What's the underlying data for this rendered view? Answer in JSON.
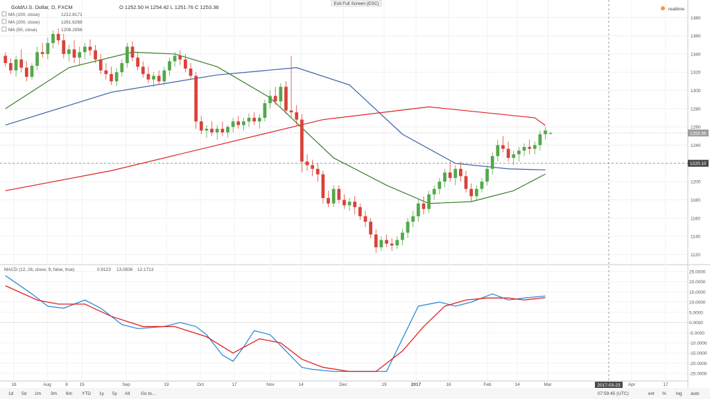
{
  "header": {
    "symbol": "Gold/U.S. Dollar, D, FXCM",
    "ohlc": "O 1252.50 H 1254.42 L 1251.76 C 1253.36",
    "exit_fullscreen": "Exit Full Screen (ESC)",
    "realtime": "realtime"
  },
  "legend": [
    {
      "label": "MA (100, close)",
      "value": "1212.8171",
      "color": "#3b5fa8"
    },
    {
      "label": "MA (200, close)",
      "value": "1261.6268",
      "color": "#e02020"
    },
    {
      "label": "MA (50, close)",
      "value": "1208.2956",
      "color": "#3a7d2a"
    }
  ],
  "price_tags": {
    "last": "1253.36",
    "crosshair": "1220.10"
  },
  "macd": {
    "label": "MACD (12, 26, close, 9, false, true)",
    "v1": "0.9123",
    "v2": "13.0836",
    "v3": "12.1713",
    "c1": "#e02020",
    "c2": "#2a8bd8",
    "c3": "#e02020"
  },
  "toolbar": {
    "periods": [
      "1d",
      "5d",
      "1m",
      "3m",
      "6m",
      "YTD",
      "1y",
      "5y",
      "All",
      "Go to..."
    ],
    "time": "07:59:45 (UTC)",
    "ext": "ext",
    "pct": "%",
    "log": "log",
    "auto": "auto"
  },
  "date_tag": "2017-03-23",
  "colors": {
    "up": "#53a84a",
    "down": "#d9423a",
    "ma100": "#3b5fa8",
    "ma200": "#e02020",
    "ma50": "#3a7d2a",
    "macd": "#2a8bd8",
    "signal": "#e02020"
  },
  "chart_data": {
    "type": "line",
    "title": "Gold/U.S. Dollar, D, FXCM",
    "price_axis": {
      "ticks": [
        1120,
        1140,
        1160,
        1180,
        1200,
        1220,
        1240,
        1260,
        1280,
        1300,
        1320,
        1340,
        1360,
        1380
      ],
      "range": [
        1112,
        1384
      ]
    },
    "macd_axis": {
      "ticks": [
        25,
        20,
        15,
        10,
        5,
        0,
        -5,
        -10,
        -15,
        -20,
        -25
      ],
      "tick_labels": [
        "25.0000",
        "20.0000",
        "15.0000",
        "10.0000",
        "5.0000",
        "0.0000",
        "-5.0000",
        "-10.0000",
        "-15.0000",
        "-20.0000",
        "-25.0000"
      ],
      "range": [
        -28,
        27
      ]
    },
    "x_ticks": [
      "18",
      "Aug",
      "8",
      "15",
      "Sep",
      "19",
      "Oct",
      "17",
      "Nov",
      "14",
      "Dec",
      "19",
      "2017",
      "16",
      "Feb",
      "14",
      "Mar",
      "Apr",
      "17"
    ],
    "candles_ohlc": [
      [
        1338,
        1342,
        1326,
        1330
      ],
      [
        1330,
        1335,
        1318,
        1322
      ],
      [
        1322,
        1338,
        1315,
        1334
      ],
      [
        1334,
        1345,
        1320,
        1325
      ],
      [
        1325,
        1332,
        1310,
        1315
      ],
      [
        1315,
        1330,
        1312,
        1327
      ],
      [
        1327,
        1348,
        1322,
        1342
      ],
      [
        1342,
        1352,
        1336,
        1340
      ],
      [
        1340,
        1358,
        1334,
        1352
      ],
      [
        1352,
        1366,
        1346,
        1362
      ],
      [
        1362,
        1368,
        1350,
        1355
      ],
      [
        1355,
        1362,
        1335,
        1340
      ],
      [
        1340,
        1350,
        1332,
        1345
      ],
      [
        1345,
        1355,
        1330,
        1336
      ],
      [
        1336,
        1348,
        1328,
        1342
      ],
      [
        1342,
        1352,
        1334,
        1348
      ],
      [
        1348,
        1356,
        1338,
        1344
      ],
      [
        1344,
        1350,
        1330,
        1334
      ],
      [
        1334,
        1340,
        1318,
        1322
      ],
      [
        1322,
        1330,
        1312,
        1318
      ],
      [
        1318,
        1326,
        1306,
        1310
      ],
      [
        1310,
        1325,
        1305,
        1320
      ],
      [
        1320,
        1334,
        1315,
        1330
      ],
      [
        1330,
        1352,
        1325,
        1348
      ],
      [
        1348,
        1354,
        1332,
        1336
      ],
      [
        1336,
        1342,
        1322,
        1326
      ],
      [
        1326,
        1332,
        1314,
        1318
      ],
      [
        1318,
        1326,
        1308,
        1312
      ],
      [
        1312,
        1320,
        1304,
        1316
      ],
      [
        1316,
        1322,
        1306,
        1310
      ],
      [
        1310,
        1326,
        1306,
        1322
      ],
      [
        1322,
        1336,
        1316,
        1332
      ],
      [
        1332,
        1342,
        1326,
        1338
      ],
      [
        1338,
        1344,
        1328,
        1334
      ],
      [
        1334,
        1340,
        1320,
        1324
      ],
      [
        1324,
        1330,
        1312,
        1316
      ],
      [
        1316,
        1320,
        1258,
        1266
      ],
      [
        1266,
        1272,
        1252,
        1256
      ],
      [
        1256,
        1262,
        1248,
        1258
      ],
      [
        1258,
        1266,
        1250,
        1254
      ],
      [
        1254,
        1262,
        1246,
        1258
      ],
      [
        1258,
        1266,
        1250,
        1254
      ],
      [
        1254,
        1262,
        1248,
        1260
      ],
      [
        1260,
        1270,
        1254,
        1266
      ],
      [
        1266,
        1272,
        1258,
        1262
      ],
      [
        1262,
        1270,
        1256,
        1266
      ],
      [
        1266,
        1275,
        1260,
        1270
      ],
      [
        1270,
        1276,
        1262,
        1266
      ],
      [
        1266,
        1274,
        1258,
        1270
      ],
      [
        1270,
        1290,
        1266,
        1286
      ],
      [
        1286,
        1300,
        1280,
        1294
      ],
      [
        1294,
        1304,
        1284,
        1288
      ],
      [
        1288,
        1308,
        1282,
        1304
      ],
      [
        1304,
        1310,
        1274,
        1278
      ],
      [
        1278,
        1338,
        1270,
        1276
      ],
      [
        1276,
        1284,
        1262,
        1268
      ],
      [
        1268,
        1274,
        1210,
        1222
      ],
      [
        1222,
        1230,
        1212,
        1218
      ],
      [
        1218,
        1224,
        1206,
        1214
      ],
      [
        1214,
        1220,
        1200,
        1208
      ],
      [
        1208,
        1212,
        1176,
        1182
      ],
      [
        1182,
        1190,
        1172,
        1176
      ],
      [
        1176,
        1196,
        1172,
        1192
      ],
      [
        1192,
        1196,
        1176,
        1180
      ],
      [
        1180,
        1186,
        1170,
        1174
      ],
      [
        1174,
        1182,
        1168,
        1178
      ],
      [
        1178,
        1184,
        1164,
        1172
      ],
      [
        1172,
        1176,
        1158,
        1162
      ],
      [
        1162,
        1168,
        1150,
        1156
      ],
      [
        1156,
        1160,
        1138,
        1142
      ],
      [
        1142,
        1148,
        1122,
        1128
      ],
      [
        1128,
        1140,
        1124,
        1136
      ],
      [
        1136,
        1142,
        1128,
        1132
      ],
      [
        1132,
        1138,
        1124,
        1130
      ],
      [
        1130,
        1140,
        1126,
        1136
      ],
      [
        1136,
        1148,
        1130,
        1144
      ],
      [
        1144,
        1160,
        1138,
        1156
      ],
      [
        1156,
        1168,
        1150,
        1162
      ],
      [
        1162,
        1180,
        1156,
        1176
      ],
      [
        1176,
        1184,
        1164,
        1170
      ],
      [
        1170,
        1190,
        1166,
        1186
      ],
      [
        1186,
        1196,
        1180,
        1192
      ],
      [
        1192,
        1204,
        1186,
        1200
      ],
      [
        1200,
        1214,
        1194,
        1210
      ],
      [
        1210,
        1222,
        1200,
        1204
      ],
      [
        1204,
        1218,
        1196,
        1214
      ],
      [
        1214,
        1222,
        1200,
        1206
      ],
      [
        1206,
        1212,
        1188,
        1192
      ],
      [
        1192,
        1198,
        1178,
        1184
      ],
      [
        1184,
        1196,
        1180,
        1192
      ],
      [
        1192,
        1204,
        1188,
        1200
      ],
      [
        1200,
        1218,
        1196,
        1214
      ],
      [
        1214,
        1232,
        1208,
        1228
      ],
      [
        1228,
        1246,
        1222,
        1240
      ],
      [
        1240,
        1250,
        1232,
        1236
      ],
      [
        1236,
        1244,
        1222,
        1226
      ],
      [
        1226,
        1234,
        1218,
        1230
      ],
      [
        1230,
        1238,
        1222,
        1234
      ],
      [
        1234,
        1242,
        1228,
        1238
      ],
      [
        1238,
        1246,
        1230,
        1236
      ],
      [
        1236,
        1244,
        1230,
        1240
      ],
      [
        1240,
        1256,
        1234,
        1252
      ],
      [
        1252,
        1260,
        1246,
        1256
      ],
      [
        1252.5,
        1254.42,
        1251.76,
        1253.36
      ]
    ],
    "series": [
      {
        "name": "MA (200, close)",
        "x": [
          0,
          20,
          40,
          60,
          80,
          100,
          102
        ],
        "values": [
          1190,
          1212,
          1240,
          1268,
          1282,
          1270,
          1261.6
        ]
      },
      {
        "name": "MA (100, close)",
        "x": [
          0,
          20,
          40,
          55,
          65,
          75,
          85,
          95,
          102
        ],
        "values": [
          1262,
          1298,
          1317,
          1325,
          1306,
          1252,
          1220,
          1214,
          1212.8
        ]
      },
      {
        "name": "MA (50, close)",
        "x": [
          0,
          12,
          24,
          32,
          40,
          50,
          62,
          72,
          80,
          88,
          96,
          102
        ],
        "values": [
          1280,
          1325,
          1342,
          1340,
          1326,
          1292,
          1226,
          1196,
          1176,
          1178,
          1190,
          1208.3
        ]
      },
      {
        "name": "MACD",
        "x": [
          0,
          5,
          8,
          11,
          15,
          18,
          22,
          25,
          30,
          33,
          36,
          38,
          41,
          43,
          45,
          47,
          50,
          53,
          56,
          58,
          62,
          65,
          68,
          72,
          75,
          78,
          82,
          85,
          88,
          92,
          95,
          98,
          102
        ],
        "values": [
          23,
          14,
          8,
          7,
          11,
          7,
          -1,
          -3,
          -2,
          0,
          -2,
          -6,
          -16,
          -19,
          -12,
          -4,
          -6,
          -14,
          -22,
          -23,
          -24,
          -24,
          -24,
          -24,
          -8,
          8,
          10,
          8,
          10,
          14,
          11,
          12,
          13
        ]
      },
      {
        "name": "Signal",
        "x": [
          0,
          6,
          10,
          15,
          20,
          26,
          32,
          38,
          43,
          48,
          52,
          56,
          60,
          65,
          70,
          75,
          79,
          83,
          87,
          91,
          95,
          98,
          102
        ],
        "values": [
          18,
          11,
          9,
          9,
          3,
          -2,
          -2,
          -7,
          -15,
          -8,
          -10,
          -18,
          -22,
          -24,
          -24,
          -14,
          -2,
          8,
          11,
          12,
          12,
          11,
          12.2
        ]
      }
    ]
  }
}
